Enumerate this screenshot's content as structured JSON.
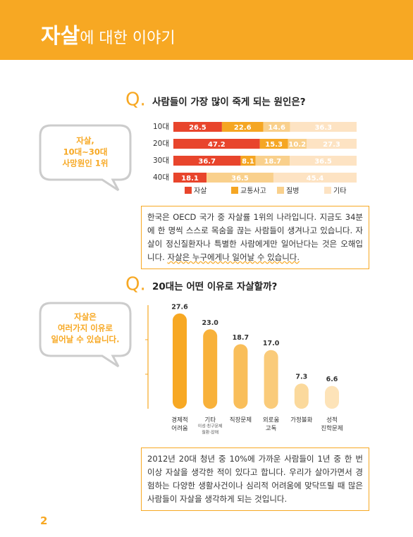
{
  "header": {
    "title_bold": "자살",
    "title_rest": "에 대한 이야기"
  },
  "sections": [
    {
      "question_mark": "Q.",
      "question": "사람들이 가장 많이 죽게 되는 원인은?",
      "bubble": [
        "자살,",
        "10대~30대",
        "사망원인 1위"
      ],
      "chart": {
        "type": "stacked-bar-horizontal",
        "categories": [
          "10대",
          "20대",
          "30대",
          "40대"
        ],
        "xlim": [
          0,
          100
        ],
        "series": [
          {
            "name": "자살",
            "color": "#e8452c",
            "values": [
              26.5,
              47.2,
              36.7,
              18.1
            ]
          },
          {
            "name": "교통사고",
            "color": "#f5a623",
            "values": [
              22.6,
              15.3,
              8.1,
              null
            ]
          },
          {
            "name": "질병",
            "color": "#f9d08c",
            "values": [
              14.6,
              10.2,
              18.7,
              36.5
            ]
          },
          {
            "name": "기타",
            "color": "#fde3c3",
            "values": [
              36.3,
              27.3,
              36.5,
              45.4
            ]
          }
        ]
      },
      "note": "한국은 OECD 국가 중 자살률 1위의 나라입니다. 지금도 34분에 한 명씩 스스로 목숨을 끊는 사람들이 생겨나고 있습니다. 자살이 정신질환자나 특별한 사람에게만 일어난다는 것은 오해입니다. ",
      "note_emphasis": "자살은 누구에게나 일어날 수 있습니다."
    },
    {
      "question_mark": "Q.",
      "question": "20대는 어떤 이유로 자살할까?",
      "bubble": [
        "자살은",
        "여러가지 이유로",
        "일어날 수 있습니다."
      ],
      "chart": {
        "type": "bar",
        "categories": [
          [
            "경제적",
            "어려움"
          ],
          [
            "기타"
          ],
          [
            "직장문제"
          ],
          [
            "외로움",
            "고독"
          ],
          [
            "가정불화"
          ],
          [
            "성적",
            "진학문제"
          ]
        ],
        "category_notes": [
          null,
          [
            "이성·친구문제",
            "질환·장애"
          ],
          null,
          null,
          null,
          null
        ],
        "values": [
          27.6,
          23.0,
          18.7,
          17.0,
          7.3,
          6.6
        ],
        "value_labels": [
          "27.6",
          "23.0",
          "18.7",
          "17.0",
          "7.3",
          "6.6"
        ],
        "colors": [
          "#f7a823",
          "#f8b13a",
          "#f9be5a",
          "#facb7a",
          "#fbd99c",
          "#fde3b8"
        ],
        "ylim": [
          0,
          30
        ],
        "yticks": [
          10,
          20
        ]
      },
      "note": "2012년 20대 청년 중 10%에 가까운 사람들이 1년 중 한 번 이상 자살을 생각한 적이 있다고 합니다. 우리가 살아가면서 경험하는 다양한 생활사건이나 심리적 어려움에 맞닥뜨릴 때 많은 사람들이 자살을 생각하게 되는 것입니다."
    }
  ],
  "page_number": "2"
}
